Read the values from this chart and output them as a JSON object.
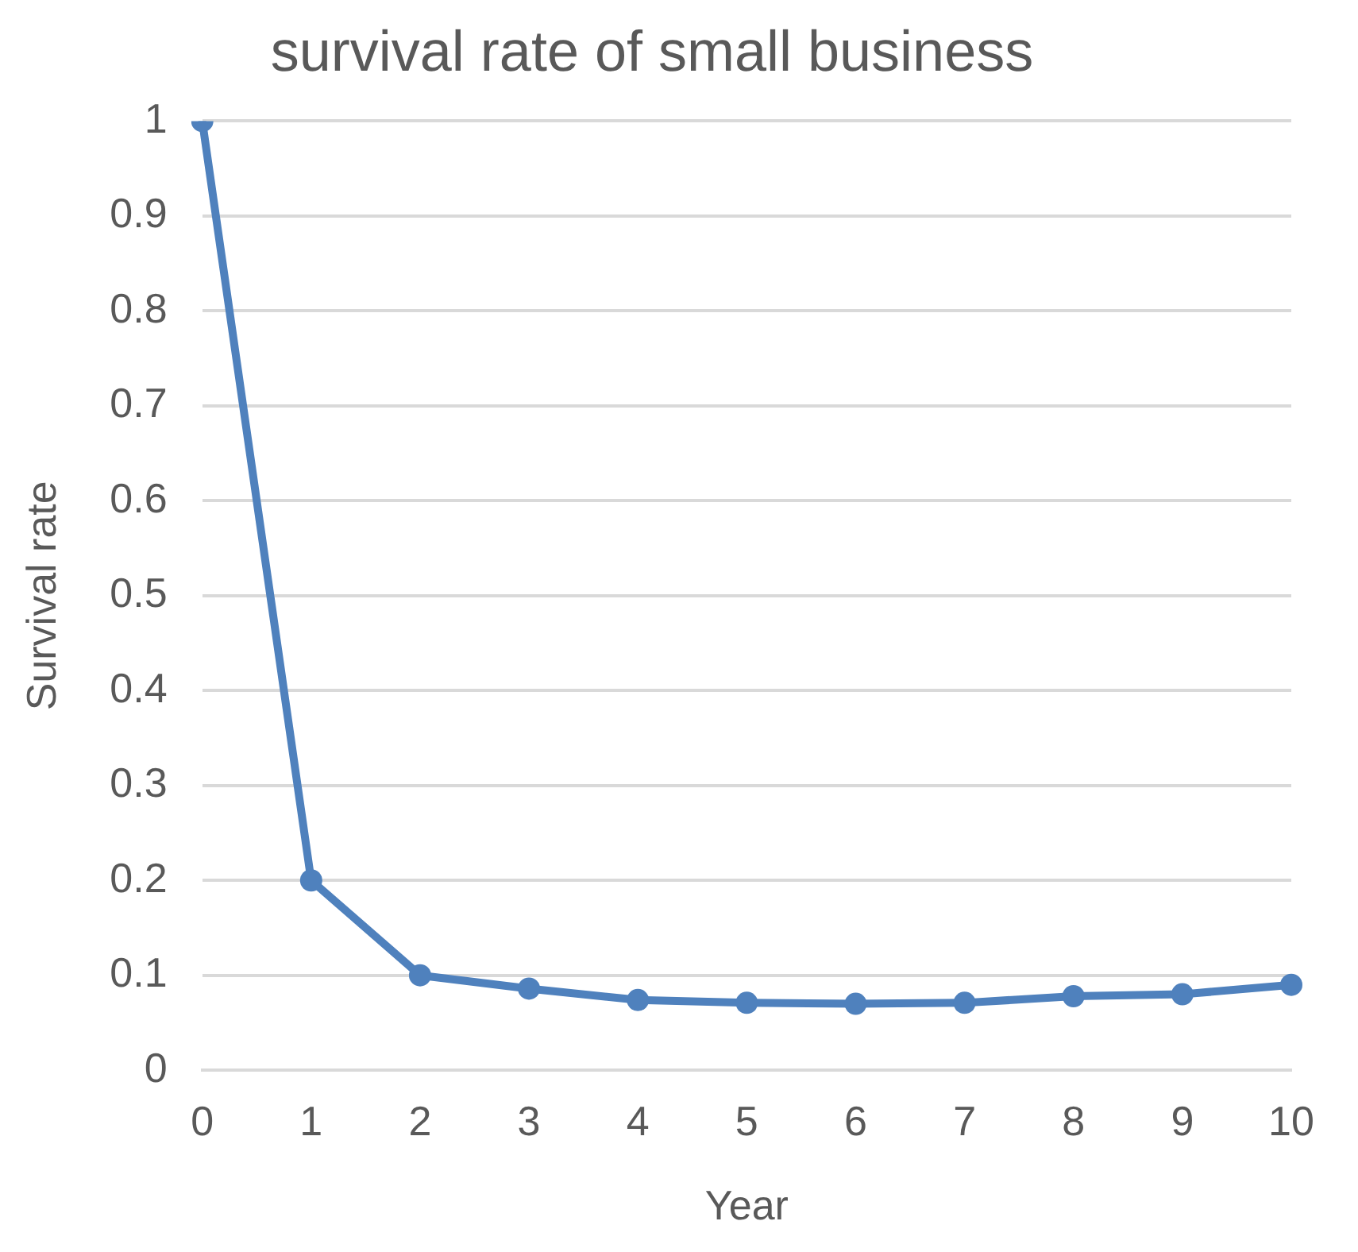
{
  "chart_data": {
    "type": "line",
    "title": "survival rate of small business",
    "xlabel": "Year",
    "ylabel": "Survival rate",
    "categories": [
      "0",
      "1",
      "2",
      "3",
      "4",
      "5",
      "6",
      "7",
      "8",
      "9",
      "10"
    ],
    "series": [
      {
        "color": "#4f81bd",
        "values": [
          1,
          0.2,
          0.1,
          0.086,
          0.074,
          0.071,
          0.07,
          0.071,
          0.078,
          0.08,
          0.09
        ]
      }
    ],
    "ylim": [
      0,
      1
    ],
    "yticks": [
      0,
      0.1,
      0.2,
      0.3,
      0.4,
      0.5,
      0.6,
      0.7,
      0.8,
      0.9,
      1
    ],
    "grid": "y",
    "legend": false,
    "marker": "circle",
    "line_style": "solid"
  }
}
